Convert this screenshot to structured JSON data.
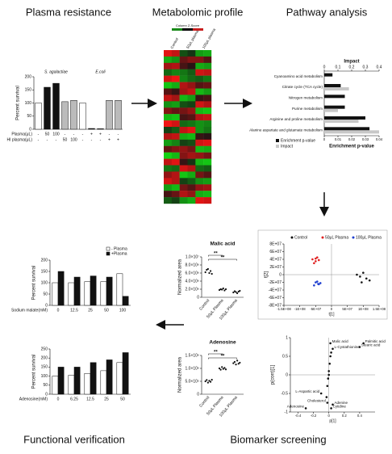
{
  "sections": [
    "Plasma resistance",
    "Metabolomic profile",
    "Pathway analysis",
    "Functional verification",
    "Biomarker screening"
  ],
  "chart_data": [
    {
      "type": "bar",
      "ylabel": "Percent survival",
      "group_labels": [
        "S. agalactiae",
        "E.coli"
      ],
      "row_labels": [
        "Plasma(μL)",
        "HI plasma(μL)"
      ],
      "categories": [
        "-",
        "50",
        "100",
        "-",
        "-",
        "-",
        "+",
        "+",
        "-",
        "-"
      ],
      "hi_plasma": [
        "-",
        "-",
        "-",
        "50",
        "100",
        "-",
        "-",
        "-",
        "+",
        "+"
      ],
      "values": [
        100,
        160,
        175,
        105,
        110,
        100,
        3,
        2,
        110,
        110
      ],
      "colors": [
        "#ffffff",
        "#111111",
        "#111111",
        "#bbbbbb",
        "#bbbbbb",
        "#ffffff",
        "#111111",
        "#111111",
        "#bbbbbb",
        "#bbbbbb"
      ],
      "ylim": [
        0,
        200
      ],
      "yticks": [
        0,
        50,
        100,
        150,
        200
      ]
    },
    {
      "type": "heatmap",
      "legend_title": "Column Z-Score",
      "x": [
        "Control",
        null,
        "50μL plasma",
        null,
        "100μL plasma",
        null
      ],
      "values": [
        [
          1.2,
          1.0,
          -0.3,
          -0.1,
          -0.9,
          -1.0
        ],
        [
          -1.0,
          -0.8,
          0.4,
          0.6,
          0.6,
          0.3
        ],
        [
          0.8,
          0.9,
          0.2,
          0.0,
          -1.0,
          -0.9
        ],
        [
          -0.5,
          -0.7,
          -0.6,
          -0.4,
          1.1,
          1.0
        ],
        [
          1.1,
          1.3,
          -0.7,
          -0.5,
          -0.4,
          -0.6
        ],
        [
          -1.2,
          -1.0,
          0.9,
          0.7,
          0.3,
          0.4
        ],
        [
          0.3,
          0.1,
          0.8,
          1.0,
          -1.1,
          -0.9
        ],
        [
          1.0,
          0.8,
          -1.1,
          -0.9,
          0.1,
          0.2
        ],
        [
          -0.8,
          -0.9,
          -0.3,
          -0.2,
          1.1,
          0.9
        ],
        [
          0.6,
          0.4,
          0.5,
          0.7,
          -1.1,
          -1.2
        ],
        [
          -1.1,
          -1.2,
          0.2,
          0.3,
          0.9,
          1.0
        ],
        [
          1.3,
          1.1,
          -0.5,
          -0.6,
          -0.8,
          -0.7
        ],
        [
          -0.2,
          -0.4,
          1.0,
          1.2,
          -0.8,
          -0.6
        ],
        [
          0.9,
          1.0,
          -1.0,
          -1.1,
          0.1,
          0.0
        ],
        [
          -0.9,
          -0.7,
          -0.2,
          -0.3,
          1.1,
          1.2
        ],
        [
          0.4,
          0.6,
          0.7,
          0.5,
          -1.1,
          -1.0
        ],
        [
          -1.3,
          -1.1,
          0.6,
          0.8,
          0.7,
          0.5
        ],
        [
          1.0,
          1.2,
          0.1,
          -0.1,
          -1.1,
          -1.2
        ],
        [
          -0.6,
          -0.5,
          1.1,
          0.9,
          -0.5,
          -0.4
        ],
        [
          0.7,
          0.9,
          -1.2,
          -1.0,
          0.5,
          0.3
        ],
        [
          1.1,
          0.9,
          -0.2,
          -0.4,
          -0.8,
          -0.9
        ],
        [
          -0.9,
          -1.1,
          0.5,
          0.3,
          0.7,
          0.8
        ],
        [
          0.2,
          0.4,
          0.9,
          0.7,
          -1.0,
          -1.1
        ],
        [
          -0.4,
          -0.2,
          -0.8,
          -1.0,
          1.2,
          1.1
        ]
      ]
    },
    {
      "type": "hbar",
      "categories": [
        "Cyanoamino acid metabolism",
        "Citrate cycle (TCA cycle)",
        "Nitrogen metabolism",
        "Purine metabolism",
        "Arginine and proline metabolism",
        "Alanine aspartate and glutamate metabolism"
      ],
      "series": [
        {
          "name": "Enrichment p-value",
          "color": "#111111",
          "values": [
            0.006,
            0.012,
            0.015,
            0.015,
            0.03,
            0.033
          ]
        },
        {
          "name": "Impact",
          "color": "#c8c8c8",
          "axis": "x2",
          "values": [
            0.0,
            0.18,
            0.0,
            0.1,
            0.25,
            0.4
          ]
        }
      ],
      "xlabel": "Enrichment p-value",
      "xlim": [
        0,
        0.04
      ],
      "xticks": [
        0,
        0.01,
        0.02,
        0.03,
        0.04
      ],
      "x2label": "Impact",
      "x2lim": [
        0,
        0.4
      ],
      "x2ticks": [
        0,
        0.1,
        0.2,
        0.3,
        0.4
      ]
    },
    {
      "type": "scatter",
      "legend": true,
      "origin_axes": true,
      "xlabel": "t[1]",
      "ylabel": "t[2]",
      "series": [
        {
          "name": "Control",
          "color": "#111111",
          "x": [
            80000000,
            90000000,
            100000000,
            110000000,
            120000000,
            95000000
          ],
          "y": [
            0,
            -5000000,
            5000000,
            -10000000,
            -15000000,
            -20000000
          ]
        },
        {
          "name": "50μL Plasma",
          "color": "#e02020",
          "x": [
            -60000000,
            -50000000,
            -45000000,
            -55000000,
            -40000000,
            -50000000
          ],
          "y": [
            40000000,
            35000000,
            45000000,
            30000000,
            38000000,
            42000000
          ]
        },
        {
          "name": "100μL Plasma",
          "color": "#1f3fd0",
          "x": [
            -50000000,
            -40000000,
            -45000000,
            -35000000,
            -55000000,
            -42000000
          ],
          "y": [
            -20000000,
            -25000000,
            -18000000,
            -22000000,
            -28000000,
            -24000000
          ]
        }
      ],
      "xlim": [
        -150000000,
        150000000
      ],
      "xticks": [
        {
          "value": -150000000,
          "label": "-1.5E+08"
        },
        {
          "value": -100000000,
          "label": "-1E+08"
        },
        {
          "value": -50000000,
          "label": "-5E+07"
        },
        0,
        {
          "value": 50000000,
          "label": "5E+07"
        },
        {
          "value": 100000000,
          "label": "1E+08"
        },
        {
          "value": 150000000,
          "label": "1.5E+08"
        }
      ],
      "ylim": [
        -80000000,
        80000000
      ],
      "yticks": [
        {
          "value": 80000000,
          "label": "8E+07"
        },
        {
          "value": 60000000,
          "label": "6E+07"
        },
        {
          "value": 40000000,
          "label": "4E+07"
        },
        {
          "value": 20000000,
          "label": "2E+07"
        },
        0,
        {
          "value": -20000000,
          "label": "-2E+07"
        },
        {
          "value": -40000000,
          "label": "-4E+07"
        },
        {
          "value": -60000000,
          "label": "-6E+07"
        },
        {
          "value": -80000000,
          "label": "-8E+07"
        }
      ]
    },
    {
      "type": "scatter",
      "origin_axes": true,
      "xlabel": "p[1]",
      "ylabel": "p(corr)[1]",
      "series": [
        {
          "color": "#111111",
          "x": [
            0.02,
            0.45,
            0.4,
            0.05,
            -0.1,
            -0.02,
            -0.3,
            0.05,
            0.03,
            0.01,
            0.0,
            -0.01,
            0.02,
            -0.02,
            0.0,
            0.03,
            -0.03
          ],
          "y": [
            0.85,
            0.85,
            0.75,
            0.7,
            -0.5,
            -0.75,
            -0.9,
            -0.8,
            -0.9,
            0.3,
            0.1,
            -0.1,
            0.5,
            -0.3,
            0.0,
            0.6,
            -0.6
          ],
          "labels": [
            "Malic acid",
            "Palmitic acid",
            "Stearic acid",
            "L-Cystathionine",
            "L-Aspartic acid",
            "Cholesterol",
            "Adenosine",
            "Adenine",
            "Cytidine",
            null,
            null,
            null,
            null,
            null,
            null,
            null,
            null
          ]
        }
      ],
      "xlim": [
        -0.5,
        0.6
      ],
      "xticks": [
        -0.4,
        -0.2,
        0,
        0.2,
        0.4
      ],
      "ylim": [
        -1,
        1
      ],
      "yticks": [
        -1,
        -0.5,
        0,
        0.5,
        1
      ]
    },
    {
      "type": "strip",
      "title": "Malic acid",
      "ylabel": "Normalized area",
      "annotations": [
        "**",
        "**"
      ],
      "categories": [
        "Control",
        "50μL Plasma",
        "100μL Plasma"
      ],
      "values": [
        [
          6200000,
          6800000,
          7000000,
          6000000,
          6500000,
          5800000
        ],
        [
          1800000,
          2000000,
          1900000,
          2200000,
          1700000,
          2000000
        ],
        [
          1200000,
          1500000,
          1300000,
          1000000,
          1400000,
          1600000
        ]
      ],
      "ylim": [
        0,
        10000000
      ],
      "yticks": [
        0,
        {
          "value": 2000000,
          "label": "2.0×10⁶"
        },
        {
          "value": 4000000,
          "label": "4.0×10⁶"
        },
        {
          "value": 6000000,
          "label": "6.0×10⁶"
        },
        {
          "value": 8000000,
          "label": "8.0×10⁶"
        },
        {
          "value": 10000000,
          "label": "1.0×10⁷"
        }
      ]
    },
    {
      "type": "strip",
      "title": "Adenosine",
      "ylabel": "Normalized area",
      "annotations": [
        "**",
        "**"
      ],
      "categories": [
        "Control",
        "50μL Plasma",
        "100μL Plasma"
      ],
      "values": [
        [
          500000,
          550000,
          450000,
          520000,
          480000,
          560000
        ],
        [
          1000000,
          950000,
          1050000,
          980000,
          1020000,
          960000
        ],
        [
          1200000,
          1250000,
          1150000,
          1300000,
          1180000,
          1220000
        ]
      ],
      "ylim": [
        0,
        1500000
      ],
      "yticks": [
        0,
        {
          "value": 500000,
          "label": "5.0×10⁵"
        },
        {
          "value": 1000000,
          "label": "1.0×10⁶"
        },
        {
          "value": 1500000,
          "label": "1.5×10⁶"
        }
      ]
    },
    {
      "type": "bar",
      "legend": true,
      "ylabel": "Percent survival",
      "xlabel": "Sodium malate(mM)",
      "categories": [
        "0",
        "12.5",
        "25",
        "50",
        "100"
      ],
      "series": [
        {
          "name": "- Plasma",
          "color": "#ffffff",
          "values": [
            100,
            100,
            105,
            105,
            140
          ]
        },
        {
          "name": "+Plasma",
          "color": "#111111",
          "values": [
            150,
            125,
            130,
            125,
            40
          ]
        }
      ],
      "ylim": [
        0,
        200
      ],
      "yticks": [
        0,
        50,
        100,
        150,
        200
      ]
    },
    {
      "type": "bar",
      "ylabel": "Percent survival",
      "xlabel": "Adenosine(mM)",
      "categories": [
        "0",
        "6.25",
        "12.5",
        "25",
        "50"
      ],
      "series": [
        {
          "name": "- Plasma",
          "color": "#ffffff",
          "values": [
            100,
            105,
            115,
            130,
            175
          ]
        },
        {
          "name": "+Plasma",
          "color": "#111111",
          "values": [
            150,
            150,
            175,
            190,
            230
          ]
        }
      ],
      "ylim": [
        0,
        250
      ],
      "yticks": [
        0,
        50,
        100,
        150,
        200,
        250
      ]
    }
  ]
}
